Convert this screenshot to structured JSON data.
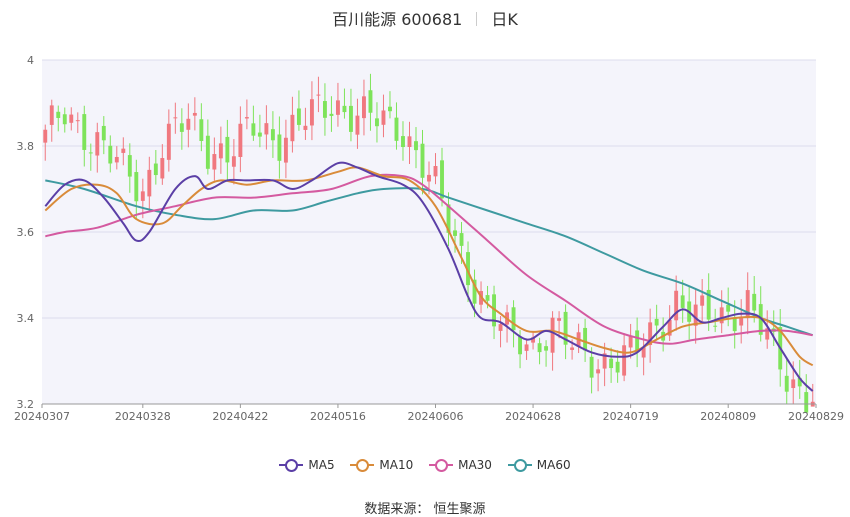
{
  "title": {
    "name": "百川能源 600681",
    "period": "日K"
  },
  "source_text": "数据来源：  恒生聚源",
  "colors": {
    "up": "#f0787f",
    "down": "#7ee35a",
    "ma5": "#5b3fa6",
    "ma10": "#d98b3a",
    "ma30": "#d45aa0",
    "ma60": "#3e9aa0",
    "plot_bg": "#f4f4fb",
    "grid": "#dcdcec"
  },
  "chart_data": {
    "type": "candlestick",
    "ylim": [
      3.2,
      4.0
    ],
    "yticks": [
      "3.2",
      "3.4",
      "3.6",
      "3.8",
      "4"
    ],
    "ytick_values": [
      3.2,
      3.4,
      3.6,
      3.8,
      4.0
    ],
    "xticks": [
      "20240307",
      "20240328",
      "20240422",
      "20240516",
      "20240606",
      "20240628",
      "20240719",
      "20240809",
      "20240829"
    ],
    "num_days": 119,
    "xtick_index": [
      0,
      15,
      30,
      45,
      60,
      75,
      90,
      105,
      118
    ],
    "anchors": [
      {
        "i": 0,
        "c": 3.82
      },
      {
        "i": 3,
        "c": 3.88
      },
      {
        "i": 7,
        "c": 3.82
      },
      {
        "i": 11,
        "c": 3.76
      },
      {
        "i": 15,
        "c": 3.7
      },
      {
        "i": 18,
        "c": 3.8
      },
      {
        "i": 22,
        "c": 3.86
      },
      {
        "i": 25,
        "c": 3.8
      },
      {
        "i": 28,
        "c": 3.78
      },
      {
        "i": 32,
        "c": 3.84
      },
      {
        "i": 36,
        "c": 3.82
      },
      {
        "i": 40,
        "c": 3.86
      },
      {
        "i": 44,
        "c": 3.9
      },
      {
        "i": 47,
        "c": 3.88
      },
      {
        "i": 51,
        "c": 3.86
      },
      {
        "i": 55,
        "c": 3.84
      },
      {
        "i": 58,
        "c": 3.76
      },
      {
        "i": 60,
        "c": 3.7
      },
      {
        "i": 63,
        "c": 3.58
      },
      {
        "i": 66,
        "c": 3.48
      },
      {
        "i": 68,
        "c": 3.42
      },
      {
        "i": 71,
        "c": 3.36
      },
      {
        "i": 75,
        "c": 3.34
      },
      {
        "i": 78,
        "c": 3.38
      },
      {
        "i": 81,
        "c": 3.33
      },
      {
        "i": 85,
        "c": 3.3
      },
      {
        "i": 90,
        "c": 3.31
      },
      {
        "i": 93,
        "c": 3.36
      },
      {
        "i": 97,
        "c": 3.44
      },
      {
        "i": 100,
        "c": 3.4
      },
      {
        "i": 104,
        "c": 3.41
      },
      {
        "i": 108,
        "c": 3.43
      },
      {
        "i": 111,
        "c": 3.35
      },
      {
        "i": 114,
        "c": 3.27
      },
      {
        "i": 117,
        "c": 3.22
      },
      {
        "i": 118,
        "c": 3.22
      }
    ],
    "ma5": [
      [
        0,
        3.66
      ],
      [
        3,
        3.71
      ],
      [
        6,
        3.72
      ],
      [
        9,
        3.68
      ],
      [
        12,
        3.62
      ],
      [
        14,
        3.58
      ],
      [
        16,
        3.6
      ],
      [
        20,
        3.7
      ],
      [
        23,
        3.73
      ],
      [
        25,
        3.7
      ],
      [
        28,
        3.72
      ],
      [
        31,
        3.72
      ],
      [
        35,
        3.72
      ],
      [
        38,
        3.7
      ],
      [
        41,
        3.72
      ],
      [
        45,
        3.76
      ],
      [
        48,
        3.75
      ],
      [
        51,
        3.73
      ],
      [
        55,
        3.71
      ],
      [
        58,
        3.67
      ],
      [
        62,
        3.56
      ],
      [
        65,
        3.45
      ],
      [
        67,
        3.4
      ],
      [
        70,
        3.39
      ],
      [
        74,
        3.35
      ],
      [
        77,
        3.37
      ],
      [
        80,
        3.35
      ],
      [
        84,
        3.32
      ],
      [
        88,
        3.31
      ],
      [
        91,
        3.32
      ],
      [
        95,
        3.38
      ],
      [
        98,
        3.42
      ],
      [
        101,
        3.39
      ],
      [
        104,
        3.4
      ],
      [
        107,
        3.41
      ],
      [
        110,
        3.4
      ],
      [
        113,
        3.33
      ],
      [
        116,
        3.26
      ],
      [
        118,
        3.23
      ]
    ],
    "ma10": [
      [
        0,
        3.65
      ],
      [
        4,
        3.7
      ],
      [
        8,
        3.71
      ],
      [
        11,
        3.69
      ],
      [
        14,
        3.63
      ],
      [
        18,
        3.62
      ],
      [
        21,
        3.66
      ],
      [
        24,
        3.7
      ],
      [
        27,
        3.72
      ],
      [
        31,
        3.71
      ],
      [
        35,
        3.72
      ],
      [
        40,
        3.72
      ],
      [
        45,
        3.74
      ],
      [
        48,
        3.75
      ],
      [
        52,
        3.73
      ],
      [
        56,
        3.72
      ],
      [
        60,
        3.66
      ],
      [
        64,
        3.54
      ],
      [
        67,
        3.45
      ],
      [
        70,
        3.41
      ],
      [
        74,
        3.37
      ],
      [
        78,
        3.37
      ],
      [
        82,
        3.35
      ],
      [
        86,
        3.33
      ],
      [
        90,
        3.32
      ],
      [
        94,
        3.35
      ],
      [
        98,
        3.38
      ],
      [
        102,
        3.39
      ],
      [
        106,
        3.4
      ],
      [
        110,
        3.4
      ],
      [
        113,
        3.37
      ],
      [
        116,
        3.31
      ],
      [
        118,
        3.29
      ]
    ],
    "ma30": [
      [
        0,
        3.59
      ],
      [
        3,
        3.6
      ],
      [
        8,
        3.61
      ],
      [
        14,
        3.64
      ],
      [
        20,
        3.66
      ],
      [
        26,
        3.68
      ],
      [
        32,
        3.68
      ],
      [
        38,
        3.69
      ],
      [
        44,
        3.7
      ],
      [
        50,
        3.73
      ],
      [
        55,
        3.73
      ],
      [
        58,
        3.71
      ],
      [
        62,
        3.66
      ],
      [
        68,
        3.58
      ],
      [
        74,
        3.5
      ],
      [
        80,
        3.44
      ],
      [
        86,
        3.38
      ],
      [
        92,
        3.35
      ],
      [
        96,
        3.34
      ],
      [
        100,
        3.35
      ],
      [
        105,
        3.36
      ],
      [
        110,
        3.37
      ],
      [
        114,
        3.37
      ],
      [
        118,
        3.36
      ]
    ],
    "ma60": [
      [
        0,
        3.72
      ],
      [
        6,
        3.7
      ],
      [
        14,
        3.66
      ],
      [
        20,
        3.64
      ],
      [
        26,
        3.63
      ],
      [
        32,
        3.65
      ],
      [
        38,
        3.65
      ],
      [
        43,
        3.67
      ],
      [
        48,
        3.69
      ],
      [
        52,
        3.7
      ],
      [
        58,
        3.7
      ],
      [
        62,
        3.68
      ],
      [
        68,
        3.65
      ],
      [
        74,
        3.62
      ],
      [
        80,
        3.59
      ],
      [
        86,
        3.55
      ],
      [
        92,
        3.51
      ],
      [
        98,
        3.48
      ],
      [
        104,
        3.44
      ],
      [
        110,
        3.4
      ],
      [
        114,
        3.38
      ],
      [
        118,
        3.36
      ]
    ],
    "legend": [
      "MA5",
      "MA10",
      "MA30",
      "MA60"
    ]
  }
}
